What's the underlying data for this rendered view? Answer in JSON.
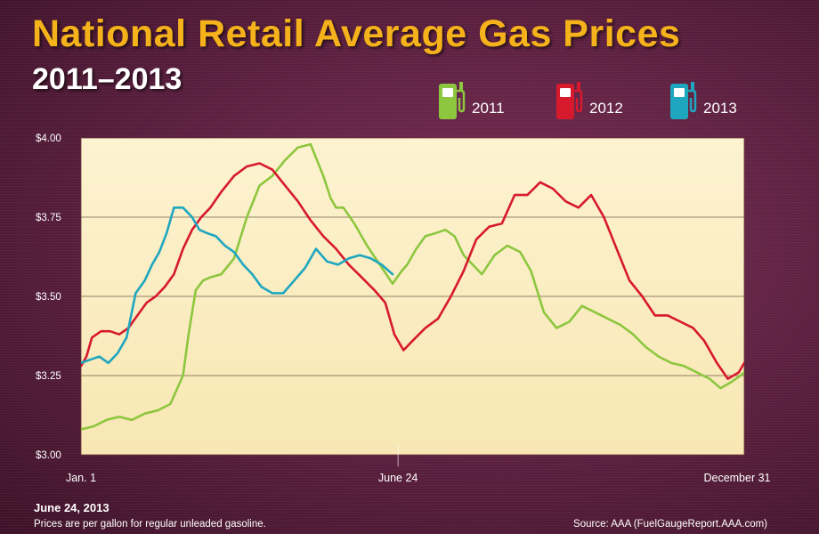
{
  "title": "National Retail Average Gas Prices",
  "subtitle": "2011–2013",
  "footer": {
    "date": "June 24, 2013",
    "note": "Prices are per gallon for regular unleaded gasoline.",
    "source": "Source: AAA (FuelGaugeReport.AAA.com)"
  },
  "legend": [
    {
      "label": "2011",
      "color": "#8dc63f",
      "icon": "gas-pump-icon"
    },
    {
      "label": "2012",
      "color": "#d7192d",
      "icon": "gas-pump-icon"
    },
    {
      "label": "2013",
      "color": "#1fa6bf",
      "icon": "gas-pump-icon"
    }
  ],
  "chart_data": {
    "type": "line",
    "title": "National Retail Average Gas Prices",
    "subtitle": "2011–2013",
    "x_unit": "day of year",
    "xlim": [
      1,
      365
    ],
    "ylim": [
      3.0,
      4.0
    ],
    "grid": true,
    "legend_position": "top-right",
    "y_ticks": [
      {
        "value": 3.0,
        "label": "$3.00"
      },
      {
        "value": 3.25,
        "label": "$3.25"
      },
      {
        "value": 3.5,
        "label": "$3.50"
      },
      {
        "value": 3.75,
        "label": "$3.75"
      },
      {
        "value": 4.0,
        "label": "$4.00"
      }
    ],
    "x_ticks": [
      {
        "value": 1,
        "label": "Jan. 1"
      },
      {
        "value": 175,
        "label": "June 24"
      },
      {
        "value": 365,
        "label": "December 31"
      }
    ],
    "series": [
      {
        "name": "2011",
        "color": "#8dc63f",
        "x": [
          1,
          8,
          15,
          22,
          29,
          36,
          43,
          50,
          57,
          60,
          64,
          68,
          72,
          78,
          85,
          92,
          99,
          106,
          113,
          120,
          127,
          134,
          138,
          141,
          145,
          151,
          158,
          165,
          172,
          177,
          180,
          185,
          190,
          196,
          201,
          206,
          211,
          216,
          221,
          228,
          235,
          242,
          248,
          255,
          262,
          269,
          276,
          283,
          290,
          297,
          304,
          311,
          318,
          325,
          332,
          339,
          346,
          352,
          358,
          363,
          365
        ],
        "y": [
          3.08,
          3.09,
          3.11,
          3.12,
          3.11,
          3.13,
          3.14,
          3.16,
          3.25,
          3.38,
          3.52,
          3.55,
          3.56,
          3.57,
          3.62,
          3.75,
          3.85,
          3.88,
          3.93,
          3.97,
          3.98,
          3.88,
          3.81,
          3.78,
          3.78,
          3.73,
          3.66,
          3.6,
          3.54,
          3.58,
          3.6,
          3.65,
          3.69,
          3.7,
          3.71,
          3.69,
          3.63,
          3.6,
          3.57,
          3.63,
          3.66,
          3.64,
          3.58,
          3.45,
          3.4,
          3.42,
          3.47,
          3.45,
          3.43,
          3.41,
          3.38,
          3.34,
          3.31,
          3.29,
          3.28,
          3.26,
          3.24,
          3.21,
          3.23,
          3.25,
          3.26
        ]
      },
      {
        "name": "2012",
        "color": "#d7192d",
        "x": [
          1,
          4,
          7,
          12,
          17,
          22,
          27,
          32,
          37,
          42,
          47,
          52,
          57,
          62,
          67,
          72,
          78,
          85,
          92,
          99,
          106,
          113,
          120,
          127,
          134,
          141,
          148,
          155,
          162,
          168,
          173,
          178,
          183,
          190,
          197,
          204,
          211,
          218,
          225,
          232,
          239,
          246,
          253,
          260,
          267,
          274,
          281,
          288,
          295,
          302,
          309,
          316,
          323,
          330,
          337,
          343,
          350,
          356,
          362,
          365
        ],
        "y": [
          3.28,
          3.31,
          3.37,
          3.39,
          3.39,
          3.38,
          3.4,
          3.44,
          3.48,
          3.5,
          3.53,
          3.57,
          3.65,
          3.71,
          3.75,
          3.78,
          3.83,
          3.88,
          3.91,
          3.92,
          3.9,
          3.85,
          3.8,
          3.74,
          3.69,
          3.65,
          3.6,
          3.56,
          3.52,
          3.48,
          3.38,
          3.33,
          3.36,
          3.4,
          3.43,
          3.5,
          3.58,
          3.68,
          3.72,
          3.73,
          3.82,
          3.82,
          3.86,
          3.84,
          3.8,
          3.78,
          3.82,
          3.75,
          3.65,
          3.55,
          3.5,
          3.44,
          3.44,
          3.42,
          3.4,
          3.36,
          3.29,
          3.24,
          3.26,
          3.29
        ]
      },
      {
        "name": "2013",
        "color": "#1fa6bf",
        "x": [
          1,
          6,
          11,
          16,
          21,
          26,
          31,
          36,
          40,
          44,
          48,
          52,
          57,
          62,
          66,
          70,
          75,
          80,
          85,
          90,
          95,
          100,
          106,
          112,
          118,
          124,
          130,
          136,
          142,
          148,
          154,
          160,
          166,
          172
        ],
        "y": [
          3.29,
          3.3,
          3.31,
          3.29,
          3.32,
          3.37,
          3.51,
          3.55,
          3.6,
          3.64,
          3.7,
          3.78,
          3.78,
          3.75,
          3.71,
          3.7,
          3.69,
          3.66,
          3.64,
          3.6,
          3.57,
          3.53,
          3.51,
          3.51,
          3.55,
          3.59,
          3.65,
          3.61,
          3.6,
          3.62,
          3.63,
          3.62,
          3.6,
          3.57
        ]
      }
    ]
  }
}
